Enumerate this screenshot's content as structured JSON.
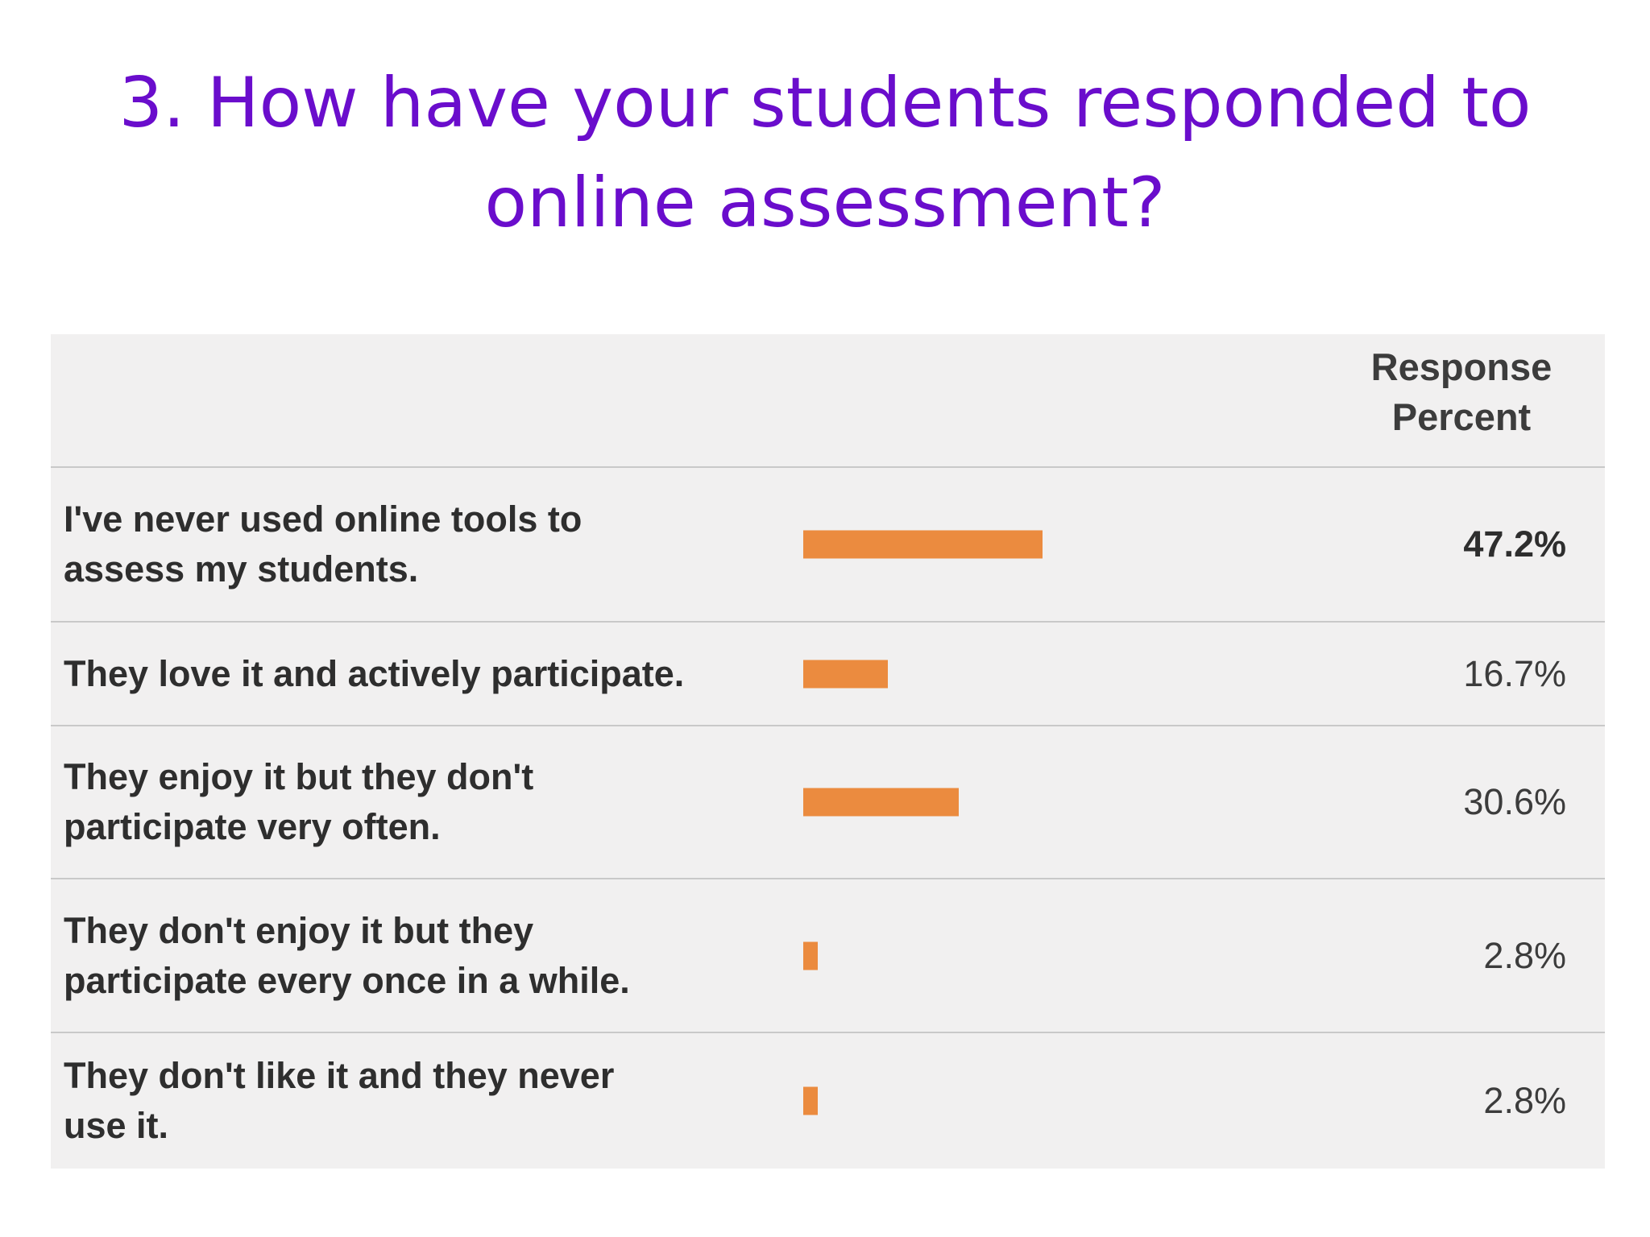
{
  "slide": {
    "title_line1": "3. How have your students responded to",
    "title_line2": "online assessment?"
  },
  "colors": {
    "title": "#6a0dcc",
    "bar": "#eb8b3f",
    "table_background": "#f1f0f0",
    "row_divider": "#c9c9c9"
  },
  "table": {
    "header": {
      "line1": "Response",
      "line2": "Percent"
    },
    "rows": [
      {
        "label_line1": "I've never used online tools to",
        "label_line2": "assess my students.",
        "percent": "47.2%"
      },
      {
        "label_line1": "They love it and actively participate.",
        "label_line2": "",
        "percent": "16.7%"
      },
      {
        "label_line1": "They enjoy it but they don't",
        "label_line2": "participate very often.",
        "percent": "30.6%"
      },
      {
        "label_line1": "They don't enjoy it but they",
        "label_line2": "participate every once in a while.",
        "percent": "2.8%"
      },
      {
        "label_line1": "They don't like it and they never",
        "label_line2": "use it.",
        "percent": "2.8%"
      }
    ]
  },
  "chart_data": {
    "type": "bar",
    "orientation": "horizontal",
    "categories": [
      "I've never used online tools to assess my students.",
      "They love it and actively participate.",
      "They enjoy it but they don't participate very often.",
      "They don't enjoy it but they participate every once in a while.",
      "They don't like it and they never use it."
    ],
    "values": [
      47.2,
      16.7,
      30.6,
      2.8,
      2.8
    ],
    "value_labels": [
      "47.2%",
      "16.7%",
      "30.6%",
      "2.8%",
      "2.8%"
    ],
    "title": "3. How have your students responded to online assessment?",
    "xlabel": "",
    "ylabel": "",
    "column_header": "Response Percent",
    "xlim": [
      0,
      100
    ],
    "highlighted_category_index": 0,
    "grid": false,
    "legend": "none"
  }
}
